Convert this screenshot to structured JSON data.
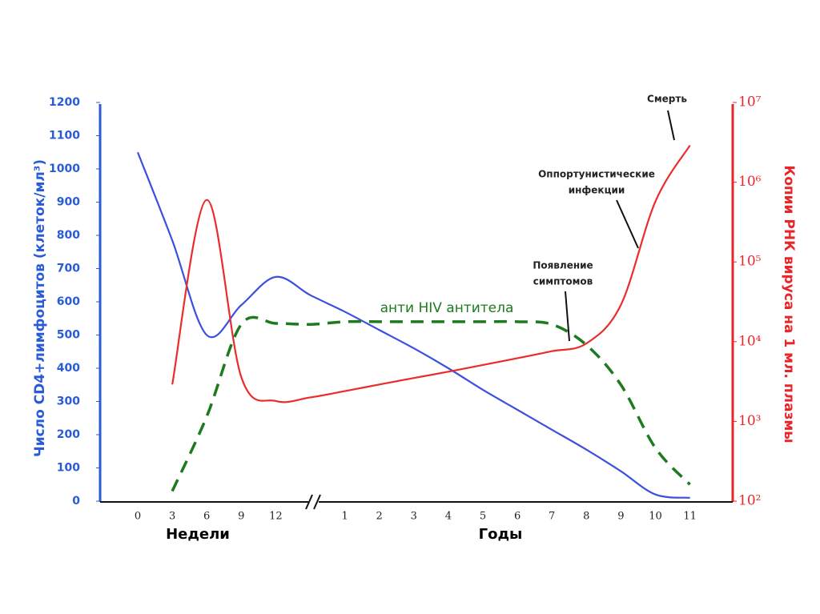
{
  "chart_data": {
    "type": "line",
    "x_label_weeks": "Недели",
    "x_label_years": "Годы",
    "y_label": "Число CD4+лимфоцитов (клеток/мл³)",
    "y2_label": "Копии РНК вируса на 1 мл. плазмы",
    "annotations": {
      "death": "Смерть",
      "infections": [
        "Оппортунистические",
        "инфекции"
      ],
      "symptoms": [
        "Появление",
        "симптомов"
      ]
    },
    "categories": [
      "0",
      "3",
      "6",
      "9",
      "12",
      null,
      "1",
      "2",
      "3",
      "4",
      "5",
      "6",
      "7",
      "8",
      "9",
      "10",
      "11"
    ],
    "ylim": [
      0,
      1200
    ],
    "yticks": [
      0,
      100,
      200,
      300,
      400,
      500,
      600,
      700,
      800,
      900,
      1000,
      1100,
      1200
    ],
    "y2lim": [
      100,
      10000000
    ],
    "y2log": true,
    "y2ticks": [
      {
        "value": 100,
        "label": "10²"
      },
      {
        "value": 1000,
        "label": "10³"
      },
      {
        "value": 10000,
        "label": "10⁴"
      },
      {
        "value": 100000,
        "label": "10⁵"
      },
      {
        "value": 1000000,
        "label": "10⁶"
      },
      {
        "value": 10000000,
        "label": "10⁷"
      }
    ],
    "series": [
      {
        "color": "#3b4fe0",
        "axis": "y",
        "dashed": false,
        "values": [
          1050,
          785,
          500,
          590,
          675,
          620,
          570,
          515,
          460,
          400,
          335,
          275,
          215,
          155,
          90,
          20,
          10
        ]
      },
      {
        "color": "#ec2b2b",
        "axis": "y2",
        "dashed": false,
        "values": [
          null,
          2900,
          600000,
          3600,
          1800,
          2000,
          2400,
          2900,
          3500,
          4200,
          5100,
          6200,
          7600,
          9500,
          29000,
          575000,
          2900000
        ]
      },
      {
        "name": "анти HIV антитела",
        "color": "#1e7a1e",
        "axis": "y",
        "dashed": true,
        "values": [
          null,
          30,
          255,
          532,
          535,
          532,
          540,
          540,
          540,
          540,
          540,
          540,
          532,
          470,
          350,
          160,
          50
        ]
      }
    ]
  }
}
